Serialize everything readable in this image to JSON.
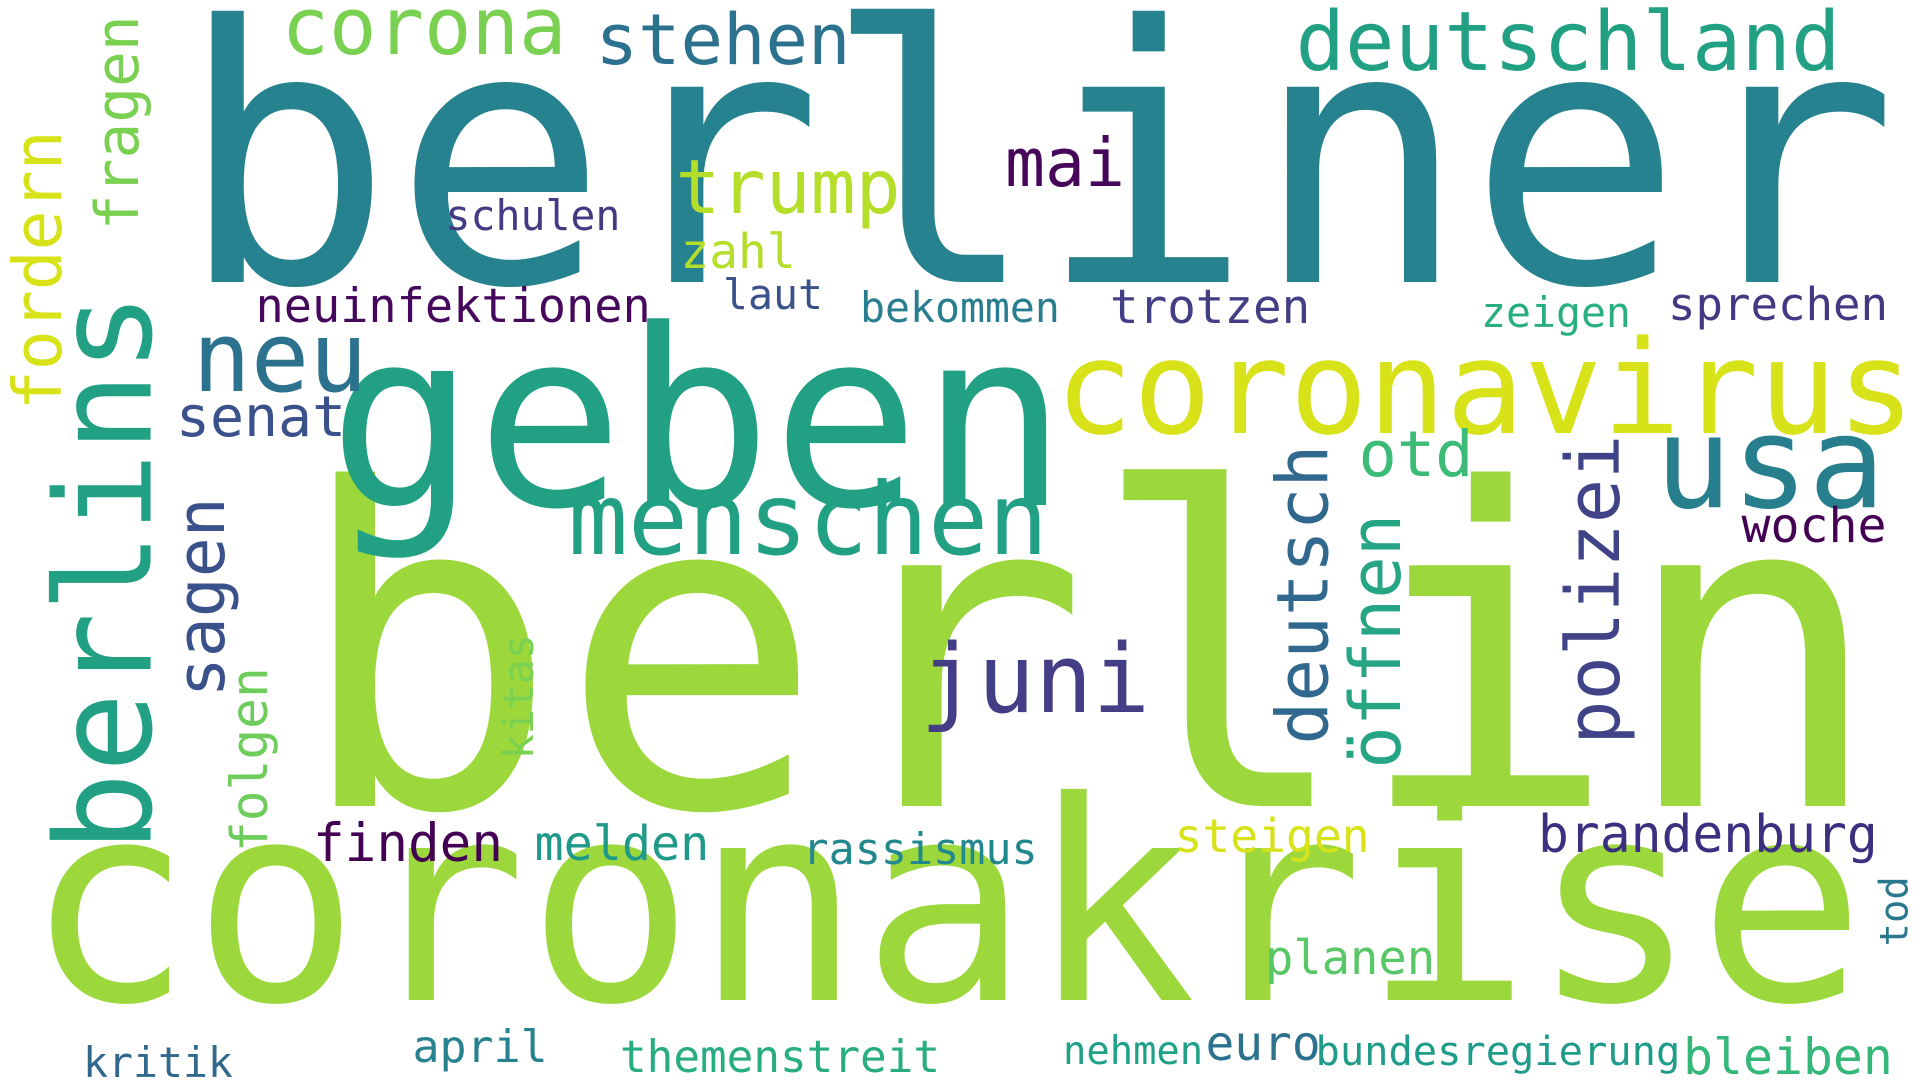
{
  "words": [
    {
      "key": "berlin",
      "text": "berlin",
      "color": "#9cd83c"
    },
    {
      "key": "berliner",
      "text": "berliner",
      "color": "#26828e"
    },
    {
      "key": "coronakrise",
      "text": "coronakrise",
      "color": "#9cd83c"
    },
    {
      "key": "geben",
      "text": "geben",
      "color": "#22a084"
    },
    {
      "key": "coronavirus",
      "text": "coronavirus",
      "color": "#d8e219"
    },
    {
      "key": "berlins",
      "text": "berlins",
      "color": "#22a084"
    },
    {
      "key": "usa",
      "text": "usa",
      "color": "#277f8e"
    },
    {
      "key": "menschen",
      "text": "menschen",
      "color": "#22a084"
    },
    {
      "key": "juni",
      "text": "juni",
      "color": "#433e85"
    },
    {
      "key": "deutschland",
      "text": "deutschland",
      "color": "#22a084"
    },
    {
      "key": "corona",
      "text": "corona",
      "color": "#7ad151"
    },
    {
      "key": "stehen",
      "text": "stehen",
      "color": "#2c728e"
    },
    {
      "key": "trump",
      "text": "trump",
      "color": "#b5de2b"
    },
    {
      "key": "neu",
      "text": "neu",
      "color": "#2c728e"
    },
    {
      "key": "senat",
      "text": "senat",
      "color": "#3b518b"
    },
    {
      "key": "sagen",
      "text": "sagen",
      "color": "#3b518b"
    },
    {
      "key": "deutsch",
      "text": "deutsch",
      "color": "#31688e"
    },
    {
      "key": "polizei",
      "text": "polizei",
      "color": "#404387"
    },
    {
      "key": "oeffnen",
      "text": "öffnen",
      "color": "#25a584"
    },
    {
      "key": "otd",
      "text": "otd",
      "color": "#3bbb75"
    },
    {
      "key": "mai",
      "text": "mai",
      "color": "#46075a"
    },
    {
      "key": "fordern",
      "text": "fordern",
      "color": "#d8e219"
    },
    {
      "key": "fragen",
      "text": "fragen",
      "color": "#7ad151"
    },
    {
      "key": "folgen",
      "text": "folgen",
      "color": "#6ccd5a"
    },
    {
      "key": "kitas",
      "text": "kitas",
      "color": "#7ad151"
    },
    {
      "key": "schulen",
      "text": "schulen",
      "color": "#443983"
    },
    {
      "key": "zahl",
      "text": "zahl",
      "color": "#b5de2b"
    },
    {
      "key": "laut",
      "text": "laut",
      "color": "#3b518b"
    },
    {
      "key": "neuinfektionen",
      "text": "neuinfektionen",
      "color": "#46085c"
    },
    {
      "key": "bekommen",
      "text": "bekommen",
      "color": "#287d8e"
    },
    {
      "key": "trotzen",
      "text": "trotzen",
      "color": "#433e85"
    },
    {
      "key": "zeigen",
      "text": "zeigen",
      "color": "#29af7f"
    },
    {
      "key": "sprechen",
      "text": "sprechen",
      "color": "#453882"
    },
    {
      "key": "woche",
      "text": "woche",
      "color": "#440154"
    },
    {
      "key": "finden",
      "text": "finden",
      "color": "#440154"
    },
    {
      "key": "melden",
      "text": "melden",
      "color": "#1f9a8a"
    },
    {
      "key": "rassismus",
      "text": "rassismus",
      "color": "#23888e"
    },
    {
      "key": "steigen",
      "text": "steigen",
      "color": "#d8e219"
    },
    {
      "key": "brandenburg",
      "text": "brandenburg",
      "color": "#3b2f80"
    },
    {
      "key": "planen",
      "text": "planen",
      "color": "#58c765"
    },
    {
      "key": "tod",
      "text": "tod",
      "color": "#2a788e"
    },
    {
      "key": "april",
      "text": "april",
      "color": "#26828e"
    },
    {
      "key": "themenstreit",
      "text": "themenstreit",
      "color": "#27ad81"
    },
    {
      "key": "nehmen",
      "text": "nehmen",
      "color": "#1fa187"
    },
    {
      "key": "euro",
      "text": "euro",
      "color": "#2c728e"
    },
    {
      "key": "bundesregierung",
      "text": "bundesregierung",
      "color": "#1e9c89"
    },
    {
      "key": "bleiben",
      "text": "bleiben",
      "color": "#35b779"
    },
    {
      "key": "kritik",
      "text": "kritik",
      "color": "#31688e"
    }
  ]
}
